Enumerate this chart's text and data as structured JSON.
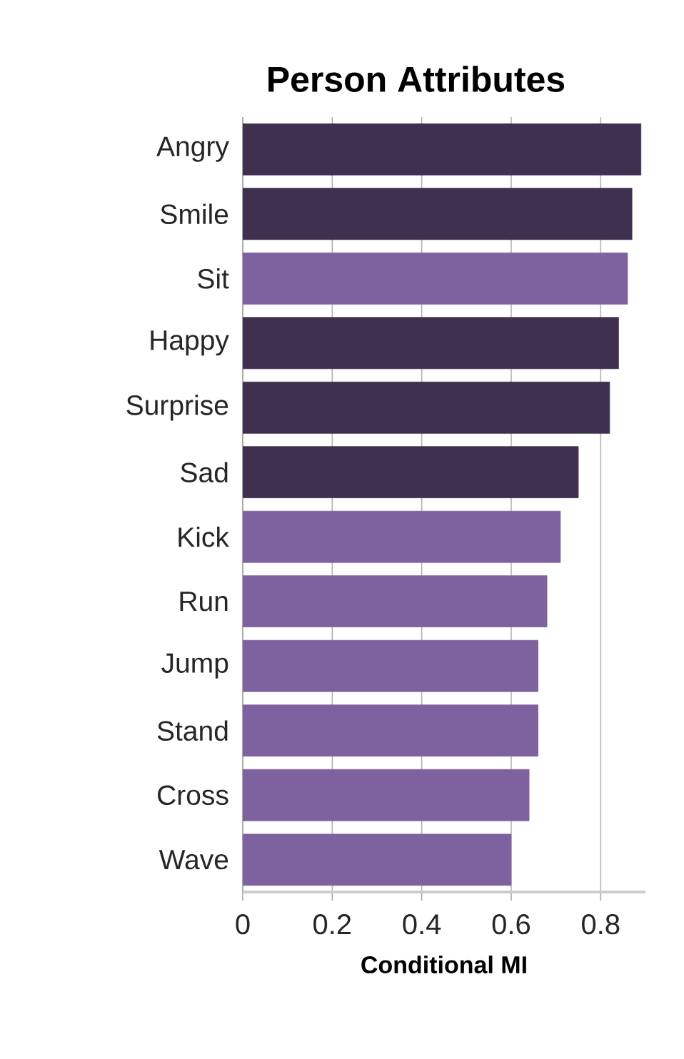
{
  "chart_data": {
    "type": "bar",
    "orientation": "horizontal",
    "title": "Person Attributes",
    "xlabel": "Conditional MI",
    "categories": [
      "Angry",
      "Smile",
      "Sit",
      "Happy",
      "Surprise",
      "Sad",
      "Kick",
      "Run",
      "Jump",
      "Stand",
      "Cross",
      "Wave"
    ],
    "values": [
      0.89,
      0.87,
      0.86,
      0.84,
      0.82,
      0.75,
      0.71,
      0.68,
      0.66,
      0.66,
      0.64,
      0.6
    ],
    "colors": [
      "#3f3050",
      "#3f3050",
      "#7e62a0",
      "#3f3050",
      "#3f3050",
      "#3f3050",
      "#7e62a0",
      "#7e62a0",
      "#7e62a0",
      "#7e62a0",
      "#7e62a0",
      "#7e62a0"
    ],
    "xlim": [
      0,
      0.9
    ],
    "xticks": [
      0,
      0.2,
      0.4,
      0.6,
      0.8
    ],
    "grid": "x"
  }
}
